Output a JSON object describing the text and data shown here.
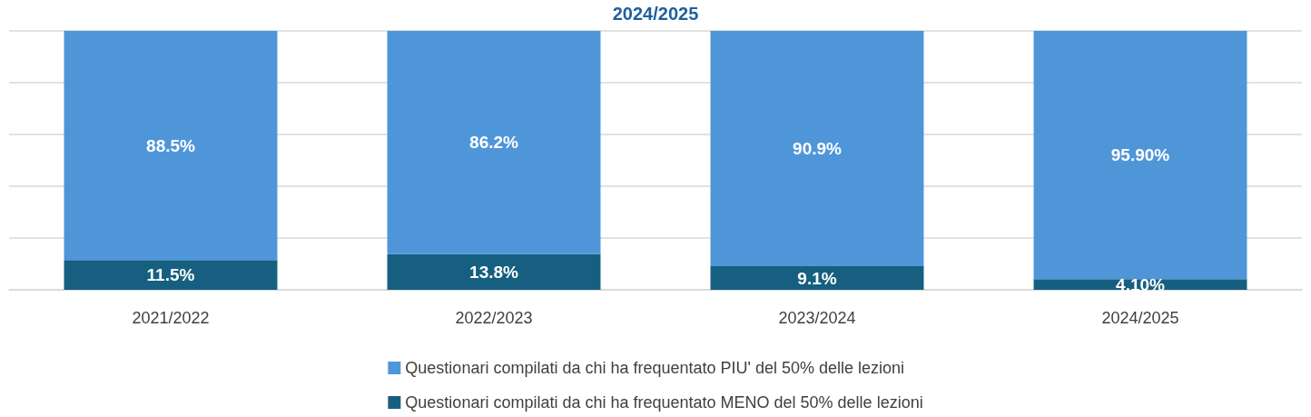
{
  "chart_data": {
    "type": "bar",
    "title": "2024/2025",
    "stacked": true,
    "categories": [
      "2021/2022",
      "2022/2023",
      "2023/2024",
      "2024/2025"
    ],
    "series": [
      {
        "name": "Questionari compilati da chi ha frequentato MENO del 50% delle lezioni",
        "color": "#165f80",
        "values": [
          11.5,
          13.8,
          9.1,
          4.1
        ],
        "value_labels": [
          "11.5%",
          "13.8%",
          "9.1%",
          "4.10%"
        ]
      },
      {
        "name": "Questionari compilati da chi ha frequentato PIU' del 50% delle lezioni",
        "color": "#4f96d9",
        "values": [
          88.5,
          86.2,
          90.9,
          95.9
        ],
        "value_labels": [
          "88.5%",
          "86.2%",
          "90.9%",
          "95.90%"
        ]
      }
    ],
    "ylim": [
      0,
      100
    ],
    "yticks": [
      {
        "value": 0,
        "label": null
      },
      {
        "value": 20,
        "label": null
      },
      {
        "value": 40,
        "label": null
      },
      {
        "value": 60,
        "label": null
      },
      {
        "value": 80,
        "label": null
      },
      {
        "value": 100,
        "label": null
      }
    ],
    "tick_labels": "x",
    "grid": "y",
    "legend": "bottom"
  }
}
